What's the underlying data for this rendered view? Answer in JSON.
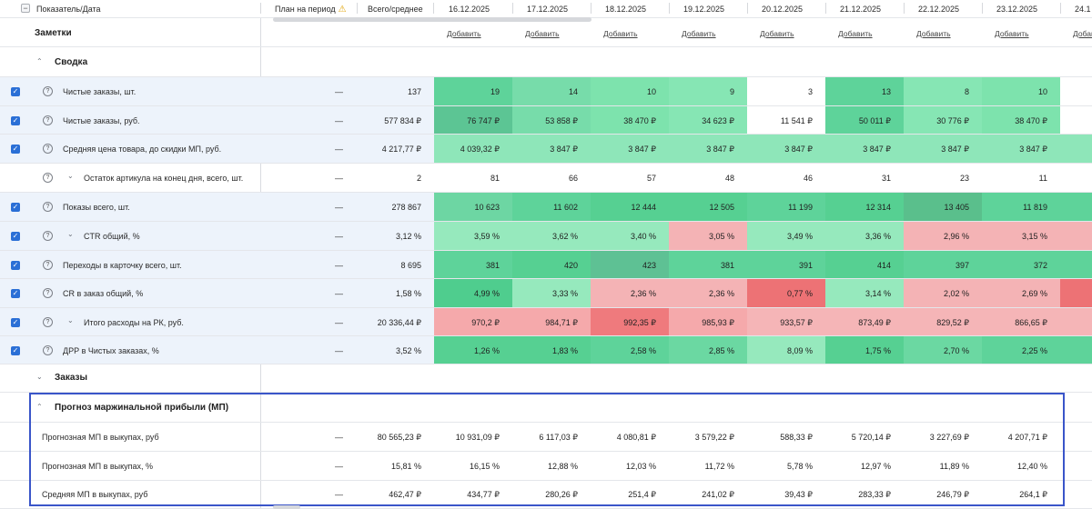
{
  "header": {
    "metric_date": "Показатель/Дата",
    "plan": "План на период",
    "total": "Всего/среднее",
    "dates": [
      "16.12.2025",
      "17.12.2025",
      "18.12.2025",
      "19.12.2025",
      "20.12.2025",
      "21.12.2025",
      "22.12.2025",
      "23.12.2025",
      "24.1"
    ]
  },
  "notes": {
    "title": "Заметки",
    "add_label": "Добавить"
  },
  "sections": {
    "summary": "Сводка",
    "orders": "Заказы",
    "forecast": "Прогноз маржинальной прибыли (МП)"
  },
  "rows": [
    {
      "label": "Чистые заказы, шт.",
      "plan": "—",
      "total": "137",
      "values": [
        "19",
        "14",
        "10",
        "9",
        "3",
        "13",
        "8",
        "10",
        ""
      ],
      "colors": [
        "#5ed39a",
        "#77dcaa",
        "#7de3ad",
        "#86e6b4",
        "#ffffff",
        "#5ed39a",
        "#86e6b4",
        "#7de3ad",
        "#ffffff"
      ]
    },
    {
      "label": "Чистые заказы, руб.",
      "plan": "—",
      "total": "577 834 ₽",
      "values": [
        "76 747 ₽",
        "53 858 ₽",
        "38 470 ₽",
        "34 623 ₽",
        "11 541 ₽",
        "50 011 ₽",
        "30 776 ₽",
        "38 470 ₽",
        ""
      ],
      "colors": [
        "#5cc594",
        "#77dcaa",
        "#7de3ad",
        "#86e6b4",
        "#ffffff",
        "#5ed39a",
        "#86e6b4",
        "#7de3ad",
        "#ffffff"
      ]
    },
    {
      "label": "Средняя цена товара, до скидки МП, руб.",
      "plan": "—",
      "total": "4 217,77 ₽",
      "values": [
        "4 039,32 ₽",
        "3 847 ₽",
        "3 847 ₽",
        "3 847 ₽",
        "3 847 ₽",
        "3 847 ₽",
        "3 847 ₽",
        "3 847 ₽",
        ""
      ],
      "colors": [
        "#8ee6b9",
        "#8ee6b9",
        "#8ee6b9",
        "#8ee6b9",
        "#8ee6b9",
        "#8ee6b9",
        "#8ee6b9",
        "#8ee6b9",
        "#8ee6b9"
      ]
    },
    {
      "label": "Остаток артикула на конец дня, всего, шт.",
      "plan": "—",
      "total": "2",
      "values": [
        "81",
        "66",
        "57",
        "48",
        "46",
        "31",
        "23",
        "11",
        ""
      ],
      "colors": [
        "#ffffff",
        "#ffffff",
        "#ffffff",
        "#ffffff",
        "#ffffff",
        "#ffffff",
        "#ffffff",
        "#ffffff",
        "#ffffff"
      ]
    },
    {
      "label": "Показы всего, шт.",
      "plan": "—",
      "total": "278 867",
      "values": [
        "10 623",
        "11 602",
        "12 444",
        "12 505",
        "11 199",
        "12 314",
        "13 405",
        "11 819",
        ""
      ],
      "colors": [
        "#6dd6a3",
        "#5ed39a",
        "#56d092",
        "#56d092",
        "#5ed39a",
        "#56d092",
        "#5abf8c",
        "#5ed39a",
        "#5ed39a"
      ]
    },
    {
      "label": "CTR общий, %",
      "plan": "—",
      "total": "3,12 %",
      "values": [
        "3,59 %",
        "3,62 %",
        "3,40 %",
        "3,05 %",
        "3,49 %",
        "3,36 %",
        "2,96 %",
        "3,15 %",
        ""
      ],
      "colors": [
        "#96e9bd",
        "#96e9bd",
        "#96e9bd",
        "#f4b3b5",
        "#96e9bd",
        "#96e9bd",
        "#f4b3b5",
        "#f4b3b5",
        "#f4b3b5"
      ]
    },
    {
      "label": "Переходы в карточку всего, шт.",
      "plan": "—",
      "total": "8 695",
      "values": [
        "381",
        "420",
        "423",
        "381",
        "391",
        "414",
        "397",
        "372",
        ""
      ],
      "colors": [
        "#5ed39a",
        "#56d092",
        "#5ec194",
        "#5ed39a",
        "#5ed39a",
        "#56d092",
        "#5ed39a",
        "#5ed39a",
        "#5ed39a"
      ]
    },
    {
      "label": "CR в заказ общий, %",
      "plan": "—",
      "total": "1,58 %",
      "values": [
        "4,99 %",
        "3,33 %",
        "2,36 %",
        "2,36 %",
        "0,77 %",
        "3,14 %",
        "2,02 %",
        "2,69 %",
        ""
      ],
      "colors": [
        "#4fcd8e",
        "#96e9bd",
        "#f4b3b5",
        "#f4b3b5",
        "#ed7275",
        "#96e9bd",
        "#f4b3b5",
        "#f4b3b5",
        "#ed7275"
      ]
    },
    {
      "label": "Итого расходы на РК, руб.",
      "plan": "—",
      "total": "20 336,44 ₽",
      "values": [
        "970,2 ₽",
        "984,71 ₽",
        "992,35 ₽",
        "985,93 ₽",
        "933,57 ₽",
        "873,49 ₽",
        "829,52 ₽",
        "866,65 ₽",
        ""
      ],
      "colors": [
        "#f5a9ab",
        "#f5a9ab",
        "#ef7a7d",
        "#f5a9ab",
        "#f5b5b7",
        "#f5b5b7",
        "#f5b5b7",
        "#f5b5b7",
        "#f5b5b7"
      ]
    },
    {
      "label": "ДРР в Чистых заказах, %",
      "plan": "—",
      "total": "3,52 %",
      "values": [
        "1,26 %",
        "1,83 %",
        "2,58 %",
        "2,85 %",
        "8,09 %",
        "1,75 %",
        "2,70 %",
        "2,25 %",
        ""
      ],
      "colors": [
        "#56d092",
        "#56d092",
        "#5ed39a",
        "#6bd8a2",
        "#96e9bd",
        "#56d092",
        "#6bd8a2",
        "#5ed39a",
        "#5ed39a"
      ]
    }
  ],
  "forecast_rows": [
    {
      "label": "Прогнозная МП в выкупах, руб",
      "plan": "—",
      "total": "80 565,23 ₽",
      "values": [
        "10 931,09 ₽",
        "6 117,03 ₽",
        "4 080,81 ₽",
        "3 579,22 ₽",
        "588,33 ₽",
        "5 720,14 ₽",
        "3 227,69 ₽",
        "4 207,71 ₽"
      ]
    },
    {
      "label": "Прогнозная МП в выкупах, %",
      "plan": "—",
      "total": "15,81 %",
      "values": [
        "16,15 %",
        "12,88 %",
        "12,03 %",
        "11,72 %",
        "5,78 %",
        "12,97 %",
        "11,89 %",
        "12,40 %"
      ]
    },
    {
      "label": "Средняя МП в выкупах, руб",
      "plan": "—",
      "total": "462,47 ₽",
      "values": [
        "434,77 ₽",
        "280,26 ₽",
        "251,4 ₽",
        "241,02 ₽",
        "39,43 ₽",
        "283,33 ₽",
        "246,79 ₽",
        "264,1 ₽"
      ]
    }
  ]
}
